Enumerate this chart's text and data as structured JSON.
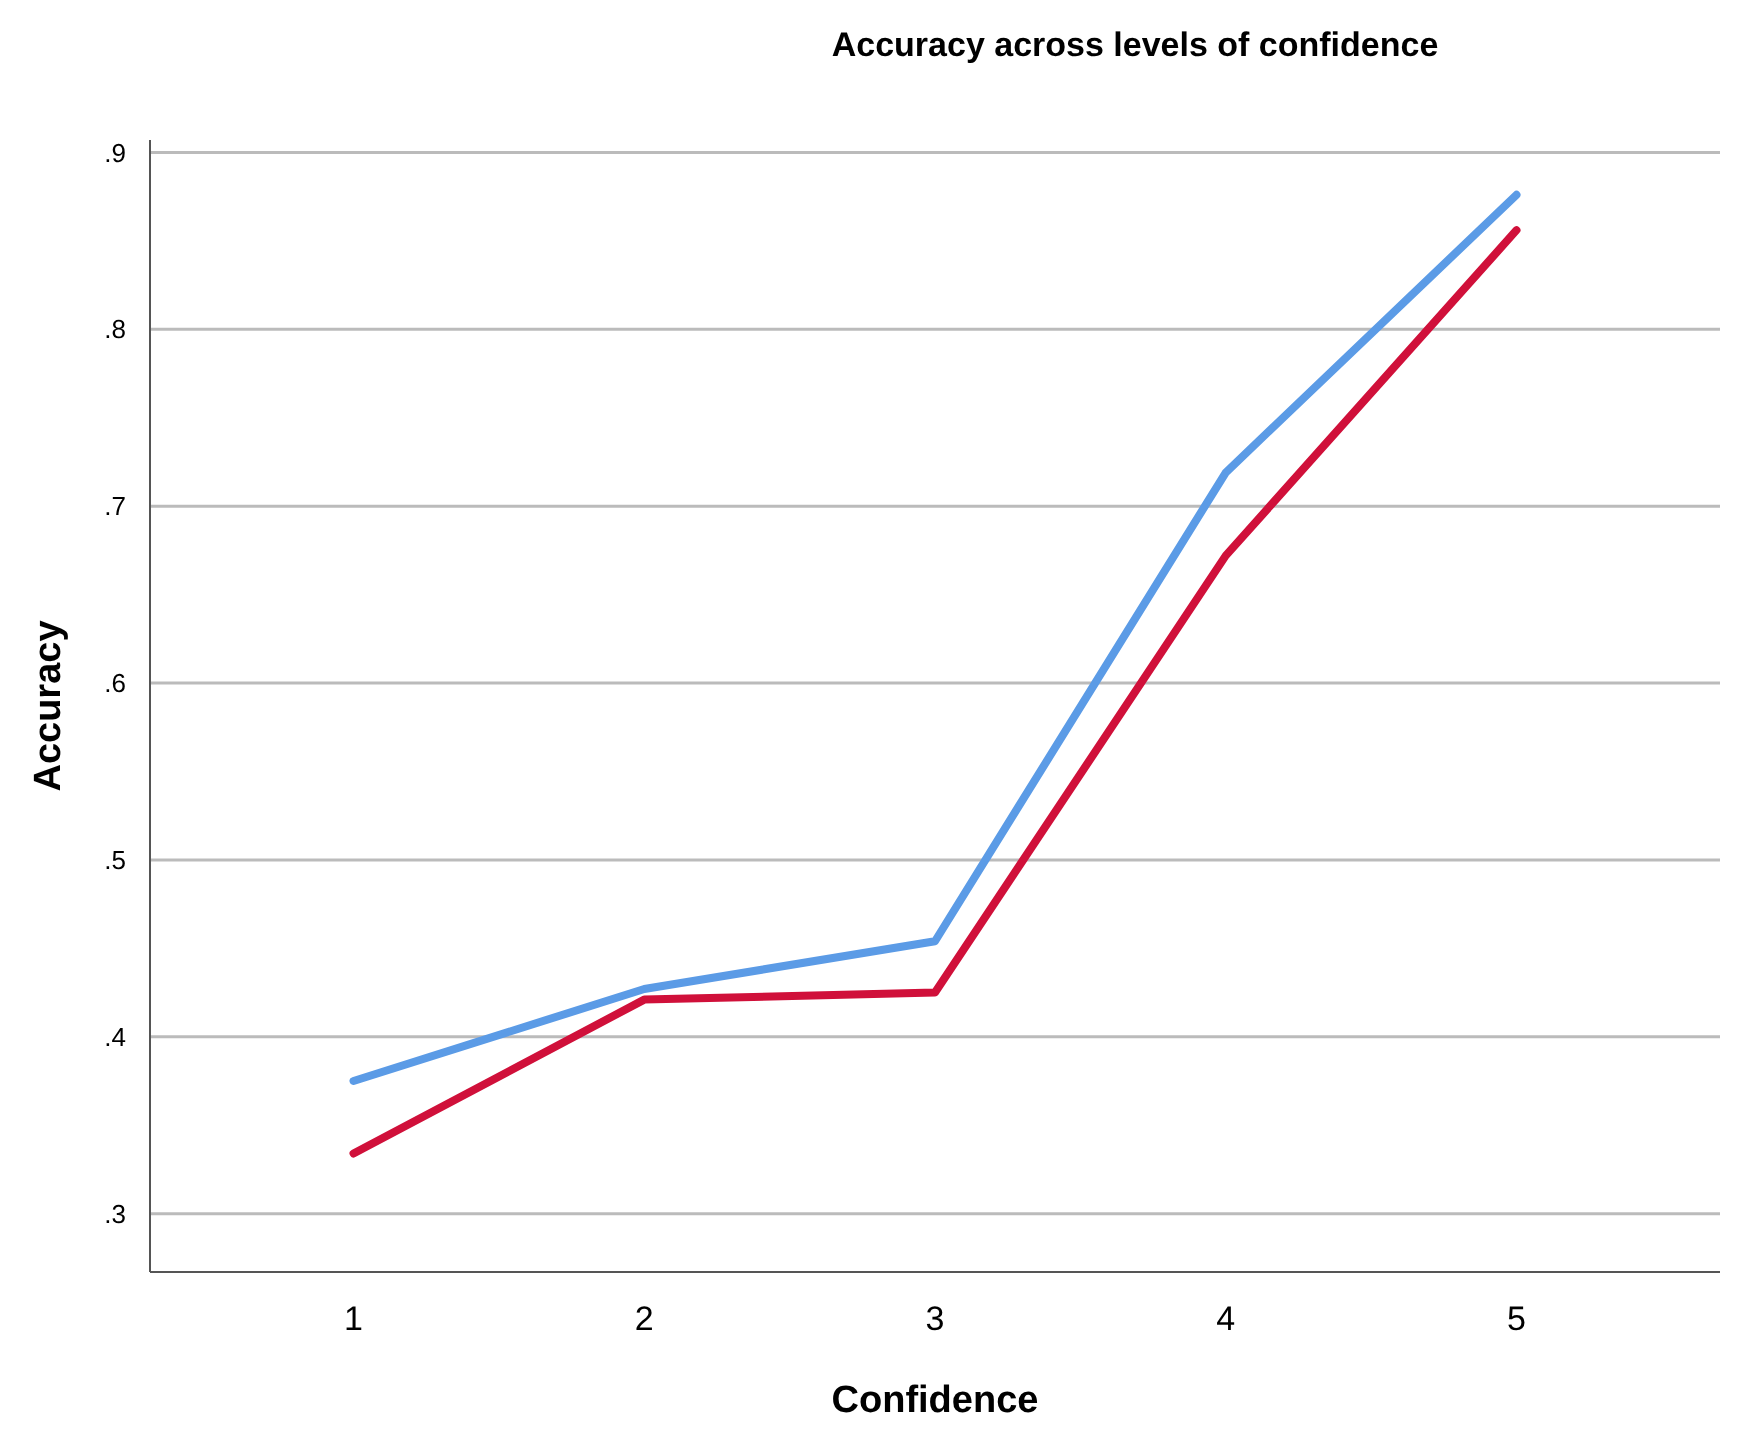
{
  "chart_data": {
    "type": "line",
    "title": "Accuracy across levels of confidence",
    "xlabel": "Confidence",
    "ylabel": "Accuracy",
    "categories": [
      "1",
      "2",
      "3",
      "4",
      "5"
    ],
    "series": [
      {
        "color": "#5b9be6",
        "values": [
          0.375,
          0.427,
          0.454,
          0.719,
          0.876
        ]
      },
      {
        "color": "#d0103a",
        "values": [
          0.334,
          0.421,
          0.425,
          0.672,
          0.856
        ]
      }
    ],
    "ylim": [
      0.267,
      0.907
    ],
    "yticks": [
      {
        "value": 0.3,
        "label": ".3"
      },
      {
        "value": 0.4,
        "label": ".4"
      },
      {
        "value": 0.5,
        "label": ".5"
      },
      {
        "value": 0.6,
        "label": ".6"
      },
      {
        "value": 0.7,
        "label": ".7"
      },
      {
        "value": 0.8,
        "label": ".8"
      },
      {
        "value": 0.9,
        "label": ".9"
      }
    ],
    "grid": "y",
    "marker": "none",
    "line_style": "solid"
  }
}
